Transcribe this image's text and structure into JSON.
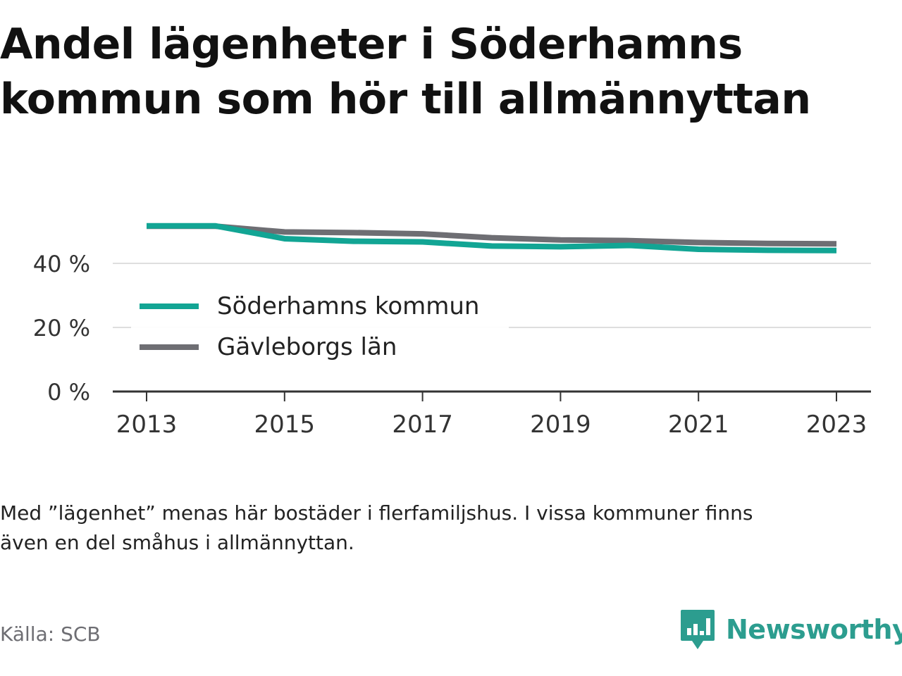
{
  "title_line1": "Andel lägenheter i Söderhamns",
  "title_line2": "kommun som hör till allmännyttan",
  "footnote_line1": "Med ”lägenhet” menas här bostäder i flerfamiljshus. I vissa kommuner finns",
  "footnote_line2": "även en del småhus i allmännyttan.",
  "source": "Källa: SCB",
  "brand": {
    "name": "Newsworthy",
    "icon": "bar-chart-speech-bubble-icon",
    "color": "#2c9d8f"
  },
  "chart_data": {
    "type": "line",
    "x": [
      2013,
      2014,
      2015,
      2016,
      2017,
      2018,
      2019,
      2020,
      2021,
      2022,
      2023
    ],
    "xticks": [
      "2013",
      "2015",
      "2017",
      "2019",
      "2021",
      "2023"
    ],
    "yticks": [
      "0 %",
      "20 %",
      "40 %"
    ],
    "ylim": [
      0,
      50
    ],
    "grid": true,
    "legend_position": "inside-left",
    "series": [
      {
        "name": "Söderhamns kommun",
        "color": "#12a594",
        "values": [
          51.7,
          51.7,
          47.7,
          46.9,
          46.7,
          45.4,
          45.2,
          45.6,
          44.4,
          44.1,
          44.0
        ]
      },
      {
        "name": "Gävleborgs län",
        "color": "#6e6e73",
        "values": [
          51.6,
          51.6,
          49.8,
          49.6,
          49.2,
          48.0,
          47.3,
          47.1,
          46.5,
          46.2,
          46.1
        ]
      }
    ]
  }
}
